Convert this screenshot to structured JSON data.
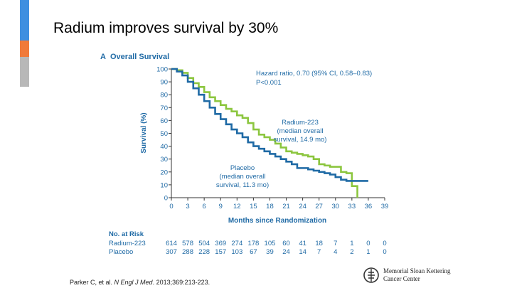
{
  "slide": {
    "title": "Radium improves survival by 30%",
    "citation_authors": "Parker C, et al. ",
    "citation_journal": "N Engl J Med",
    "citation_rest": ". 2013;369:213-223."
  },
  "logo": {
    "line1": "Memorial Sloan Kettering",
    "line2": "Cancer Center"
  },
  "colors": {
    "radium": "#8cc63f",
    "placebo": "#1f6aa5",
    "accent_blue": "#3d8fe0",
    "accent_orange": "#f07a3a",
    "accent_gray": "#b8b8b8",
    "panel_text": "#1f6aa5"
  },
  "chart_data": {
    "type": "line",
    "panel_label": "A",
    "title": "Overall Survival",
    "xlabel": "Months since Randomization",
    "ylabel": "Survival (%)",
    "xlim": [
      0,
      39
    ],
    "ylim": [
      0,
      100
    ],
    "x_ticks": [
      "0",
      "3",
      "6",
      "9",
      "12",
      "15",
      "18",
      "21",
      "24",
      "27",
      "30",
      "33",
      "36",
      "39"
    ],
    "y_ticks": [
      "0",
      "10",
      "20",
      "30",
      "40",
      "50",
      "60",
      "70",
      "80",
      "90",
      "100"
    ],
    "hazard_text": [
      "Hazard ratio, 0.70 (95% CI, 0.58–0.83)",
      "P<0.001"
    ],
    "series": [
      {
        "name": "Radium-223",
        "label_lines": [
          "Radium-223",
          "(median overall",
          "survival, 14.9 mo)"
        ],
        "color": "#8cc63f",
        "x": [
          0,
          1,
          2,
          3,
          4,
          5,
          6,
          7,
          8,
          9,
          10,
          11,
          12,
          13,
          14,
          15,
          16,
          17,
          18,
          19,
          20,
          21,
          22,
          23,
          24,
          25,
          26,
          27,
          28,
          29,
          30,
          31,
          32,
          33,
          34
        ],
        "y": [
          100,
          99,
          97,
          93,
          89,
          86,
          82,
          78,
          75,
          72,
          69,
          67,
          64,
          62,
          58,
          53,
          49,
          47,
          45,
          42,
          39,
          36,
          35,
          34,
          33,
          32,
          30,
          26,
          25,
          24,
          24,
          20,
          19,
          9,
          0
        ]
      },
      {
        "name": "Placebo",
        "label_lines": [
          "Placebo",
          "(median overall",
          "survival, 11.3 mo)"
        ],
        "color": "#1f6aa5",
        "x": [
          0,
          1,
          2,
          3,
          4,
          5,
          6,
          7,
          8,
          9,
          10,
          11,
          12,
          13,
          14,
          15,
          16,
          17,
          18,
          19,
          20,
          21,
          22,
          23,
          24,
          25,
          26,
          27,
          28,
          29,
          30,
          31,
          32,
          33,
          34,
          35,
          36
        ],
        "y": [
          100,
          98,
          95,
          90,
          85,
          80,
          75,
          70,
          65,
          61,
          57,
          53,
          50,
          47,
          43,
          40,
          38,
          36,
          34,
          32,
          30,
          28,
          26,
          23,
          23,
          22,
          21,
          20,
          19,
          18,
          16,
          14,
          13,
          13,
          13,
          13,
          13
        ]
      }
    ],
    "at_risk": {
      "header": "No. at Risk",
      "rows": [
        {
          "label": "Radium-223",
          "values": [
            "614",
            "578",
            "504",
            "369",
            "274",
            "178",
            "105",
            "60",
            "41",
            "18",
            "7",
            "1",
            "0",
            "0"
          ]
        },
        {
          "label": "Placebo",
          "values": [
            "307",
            "288",
            "228",
            "157",
            "103",
            "67",
            "39",
            "24",
            "14",
            "7",
            "4",
            "2",
            "1",
            "0"
          ]
        }
      ]
    }
  }
}
